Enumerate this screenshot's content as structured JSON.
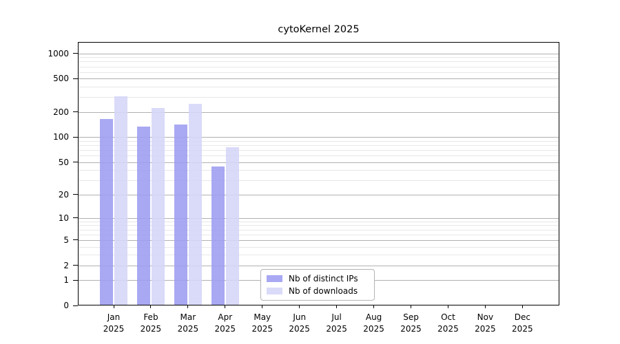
{
  "chart_data": {
    "type": "bar",
    "title": "cytoKernel 2025",
    "year_label": "2025",
    "categories": [
      "Jan",
      "Feb",
      "Mar",
      "Apr",
      "May",
      "Jun",
      "Jul",
      "Aug",
      "Sep",
      "Oct",
      "Nov",
      "Dec"
    ],
    "series": [
      {
        "key": "distinct-ips",
        "name": "Nb of distinct IPs",
        "color": "#9c9cf1",
        "values": [
          165,
          134,
          141,
          44,
          0,
          0,
          0,
          0,
          0,
          0,
          0,
          0
        ]
      },
      {
        "key": "downloads",
        "name": "Nb of downloads",
        "color": "#d5d5f8",
        "values": [
          310,
          225,
          251,
          75,
          0,
          0,
          0,
          0,
          0,
          0,
          0,
          0
        ]
      }
    ],
    "bar_opacity": 0.88,
    "xlabel": "",
    "ylabel": "",
    "grid": true,
    "legend_position": "lower center",
    "yaxis": {
      "scale": "log1p",
      "ticks": [
        0,
        1,
        2,
        5,
        10,
        20,
        50,
        100,
        200,
        500,
        1000
      ],
      "minor_gridlines": [
        3,
        4,
        6,
        7,
        8,
        9,
        30,
        40,
        60,
        70,
        80,
        90,
        300,
        400,
        600,
        700,
        800,
        900
      ],
      "range": [
        0,
        1340
      ]
    },
    "colors": {
      "major_grid": "#b0b0b0",
      "minor_grid": "#e7e7e7",
      "axis": "#000000"
    }
  }
}
